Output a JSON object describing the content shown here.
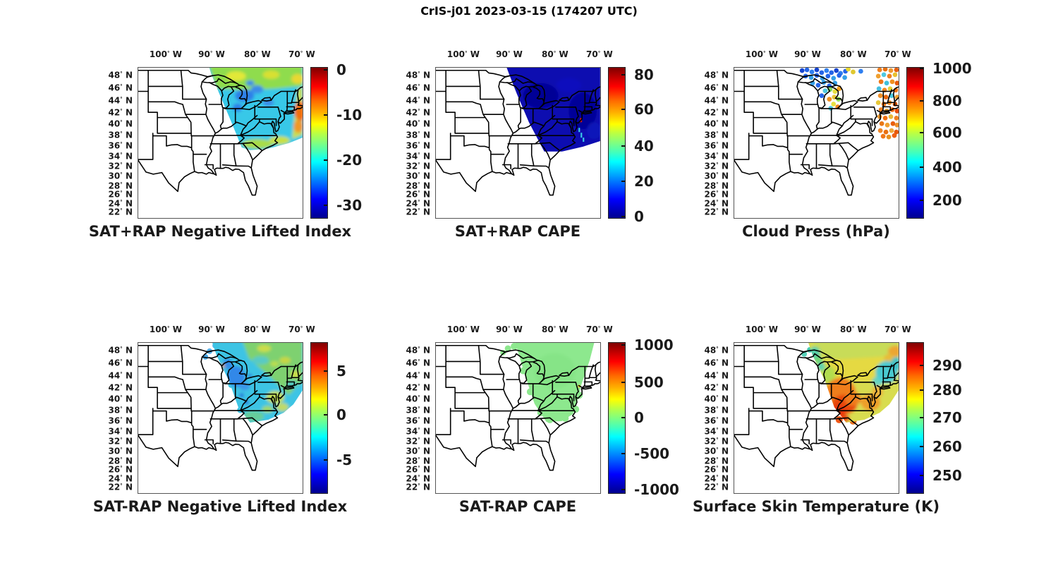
{
  "figure_title": "CrIS-j01 2023-03-15 (174207 UTC)",
  "axes": {
    "lon": [
      {
        "value": "100",
        "hem": "W"
      },
      {
        "value": "90",
        "hem": "W"
      },
      {
        "value": "80",
        "hem": "W"
      },
      {
        "value": "70",
        "hem": "W"
      }
    ],
    "lat": [
      {
        "value": "48",
        "hem": "N"
      },
      {
        "value": "46",
        "hem": "N"
      },
      {
        "value": "44",
        "hem": "N"
      },
      {
        "value": "42",
        "hem": "N"
      },
      {
        "value": "40",
        "hem": "N"
      },
      {
        "value": "38",
        "hem": "N"
      },
      {
        "value": "36",
        "hem": "N"
      },
      {
        "value": "34",
        "hem": "N"
      },
      {
        "value": "32",
        "hem": "N"
      },
      {
        "value": "30",
        "hem": "N"
      },
      {
        "value": "28",
        "hem": "N"
      },
      {
        "value": "26",
        "hem": "N"
      },
      {
        "value": "24",
        "hem": "N"
      },
      {
        "value": "22",
        "hem": "N"
      }
    ]
  },
  "panels": [
    {
      "id": "sat-plus-rap-nli",
      "title": "SAT+RAP Negative Lifted Index",
      "colorbar": {
        "colormap": "jet",
        "ticks": [
          {
            "label": "0",
            "pos": 0.014
          },
          {
            "label": "-10",
            "pos": 0.316
          },
          {
            "label": "-20",
            "pos": 0.614
          },
          {
            "label": "-30",
            "pos": 0.916
          }
        ]
      }
    },
    {
      "id": "sat-plus-rap-cape",
      "title": "SAT+RAP CAPE",
      "colorbar": {
        "colormap": "jet",
        "ticks": [
          {
            "label": "80",
            "pos": 0.047
          },
          {
            "label": "60",
            "pos": 0.279
          },
          {
            "label": "40",
            "pos": 0.521
          },
          {
            "label": "20",
            "pos": 0.758
          },
          {
            "label": "0",
            "pos": 0.991
          }
        ]
      }
    },
    {
      "id": "cloud-press",
      "title": "Cloud Press (hPa)",
      "colorbar": {
        "colormap": "jet",
        "ticks": [
          {
            "label": "1000",
            "pos": 0.004
          },
          {
            "label": "800",
            "pos": 0.223
          },
          {
            "label": "600",
            "pos": 0.433
          },
          {
            "label": "400",
            "pos": 0.66
          },
          {
            "label": "200",
            "pos": 0.884
          }
        ]
      }
    },
    {
      "id": "sat-minus-rap-nli",
      "title": "SAT-RAP Negative Lifted Index",
      "colorbar": {
        "colormap": "jet",
        "ticks": [
          {
            "label": "5",
            "pos": 0.186
          },
          {
            "label": "0",
            "pos": 0.479
          },
          {
            "label": "-5",
            "pos": 0.781
          }
        ]
      }
    },
    {
      "id": "sat-minus-rap-cape",
      "title": "SAT-RAP CAPE",
      "colorbar": {
        "colormap": "jet",
        "ticks": [
          {
            "label": "1000",
            "pos": 0.014
          },
          {
            "label": "500",
            "pos": 0.265
          },
          {
            "label": "0",
            "pos": 0.497
          },
          {
            "label": "-500",
            "pos": 0.735
          },
          {
            "label": "-1000",
            "pos": 0.977
          }
        ]
      }
    },
    {
      "id": "surface-skin-temp",
      "title": "Surface Skin Temperature (K)",
      "colorbar": {
        "colormap": "jet",
        "ticks": [
          {
            "label": "290",
            "pos": 0.149
          },
          {
            "label": "280",
            "pos": 0.316
          },
          {
            "label": "270",
            "pos": 0.498
          },
          {
            "label": "260",
            "pos": 0.688
          },
          {
            "label": "250",
            "pos": 0.884
          }
        ]
      }
    }
  ],
  "chart_data": [
    {
      "type": "heatmap",
      "panel": "top-left",
      "title": "SAT+RAP Negative Lifted Index",
      "colormap": "jet",
      "colorbar_ticks": [
        0,
        -10,
        -20,
        -30
      ],
      "colorbar_range_estimate": [
        0,
        -33
      ],
      "x_ticks": [
        "100 W",
        "90 W",
        "80 W",
        "70 W"
      ],
      "y_ticks": [
        "48 N",
        "46 N",
        "44 N",
        "42 N",
        "40 N",
        "38 N",
        "36 N",
        "34 N",
        "32 N",
        "30 N",
        "28 N",
        "26 N",
        "24 N",
        "22 N"
      ],
      "coverage": "CrIS swath over Great Lakes / Ohio Valley / Northeast; mostly -15 to -20 (cyan), -5 to -10 (green-yellow) along the northern edge, around -5 (orange) near 70W 42N, blue patches near -22 over Lakes Huron/Ontario"
    },
    {
      "type": "heatmap",
      "panel": "top-middle",
      "title": "SAT+RAP CAPE",
      "colormap": "jet",
      "colorbar_ticks": [
        80,
        60,
        40,
        20,
        0
      ],
      "colorbar_range_estimate": [
        85,
        0
      ],
      "coverage": "uniform near 0 J/kg (dark blue) across the whole swath; isolated specks up to ~80 (red) and ~40 (cyan) near the mid-Atlantic coast around 74W 38-40N"
    },
    {
      "type": "scatter",
      "panel": "top-right",
      "title": "Cloud Press (hPa)",
      "colormap": "jet",
      "colorbar_ticks": [
        1000,
        800,
        600,
        400,
        200
      ],
      "colorbar_range_estimate": [
        1050,
        110
      ],
      "coverage": "footprint dots: 200-400 hPa (blue) cluster 46-49N 80-95W; 500-700 hPa (green-yellow) and ~800 hPa (orange) over Michigan; 600-900 hPa (orange/yellow with cyan patches) band along 68-71W from 38N to 49N"
    },
    {
      "type": "heatmap",
      "panel": "bottom-left",
      "title": "SAT-RAP Negative Lifted Index",
      "colormap": "jet",
      "colorbar_ticks": [
        5,
        0,
        -5
      ],
      "colorbar_range_estimate": [
        8.5,
        -8.5
      ],
      "coverage": "differences mostly -2 to -4 (cyan), ~-5 (blue) footprints near the Great Lakes, 0 to +2 (green-yellow speckle) along the northern band and the Atlantic coast"
    },
    {
      "type": "heatmap",
      "panel": "bottom-middle",
      "title": "SAT-RAP CAPE",
      "colormap": "jet",
      "colorbar_ticks": [
        1000,
        500,
        0,
        -500,
        -1000
      ],
      "colorbar_range_estimate": [
        1000,
        -1000
      ],
      "coverage": "uniform near 0 (light green) across the entire swath"
    },
    {
      "type": "heatmap",
      "panel": "bottom-right",
      "title": "Surface Skin Temperature (K)",
      "colormap": "jet",
      "colorbar_ticks": [
        290,
        280,
        270,
        260,
        250
      ],
      "colorbar_range_estimate": [
        298,
        243
      ],
      "coverage": "270-278 K (green-yellow) across the north, 285-293 K (orange-red) over the Ohio Valley / Virginia, ~263-268 K (cyan) over northern New England, ~285 K (orange) along the mid-Atlantic coast"
    }
  ]
}
